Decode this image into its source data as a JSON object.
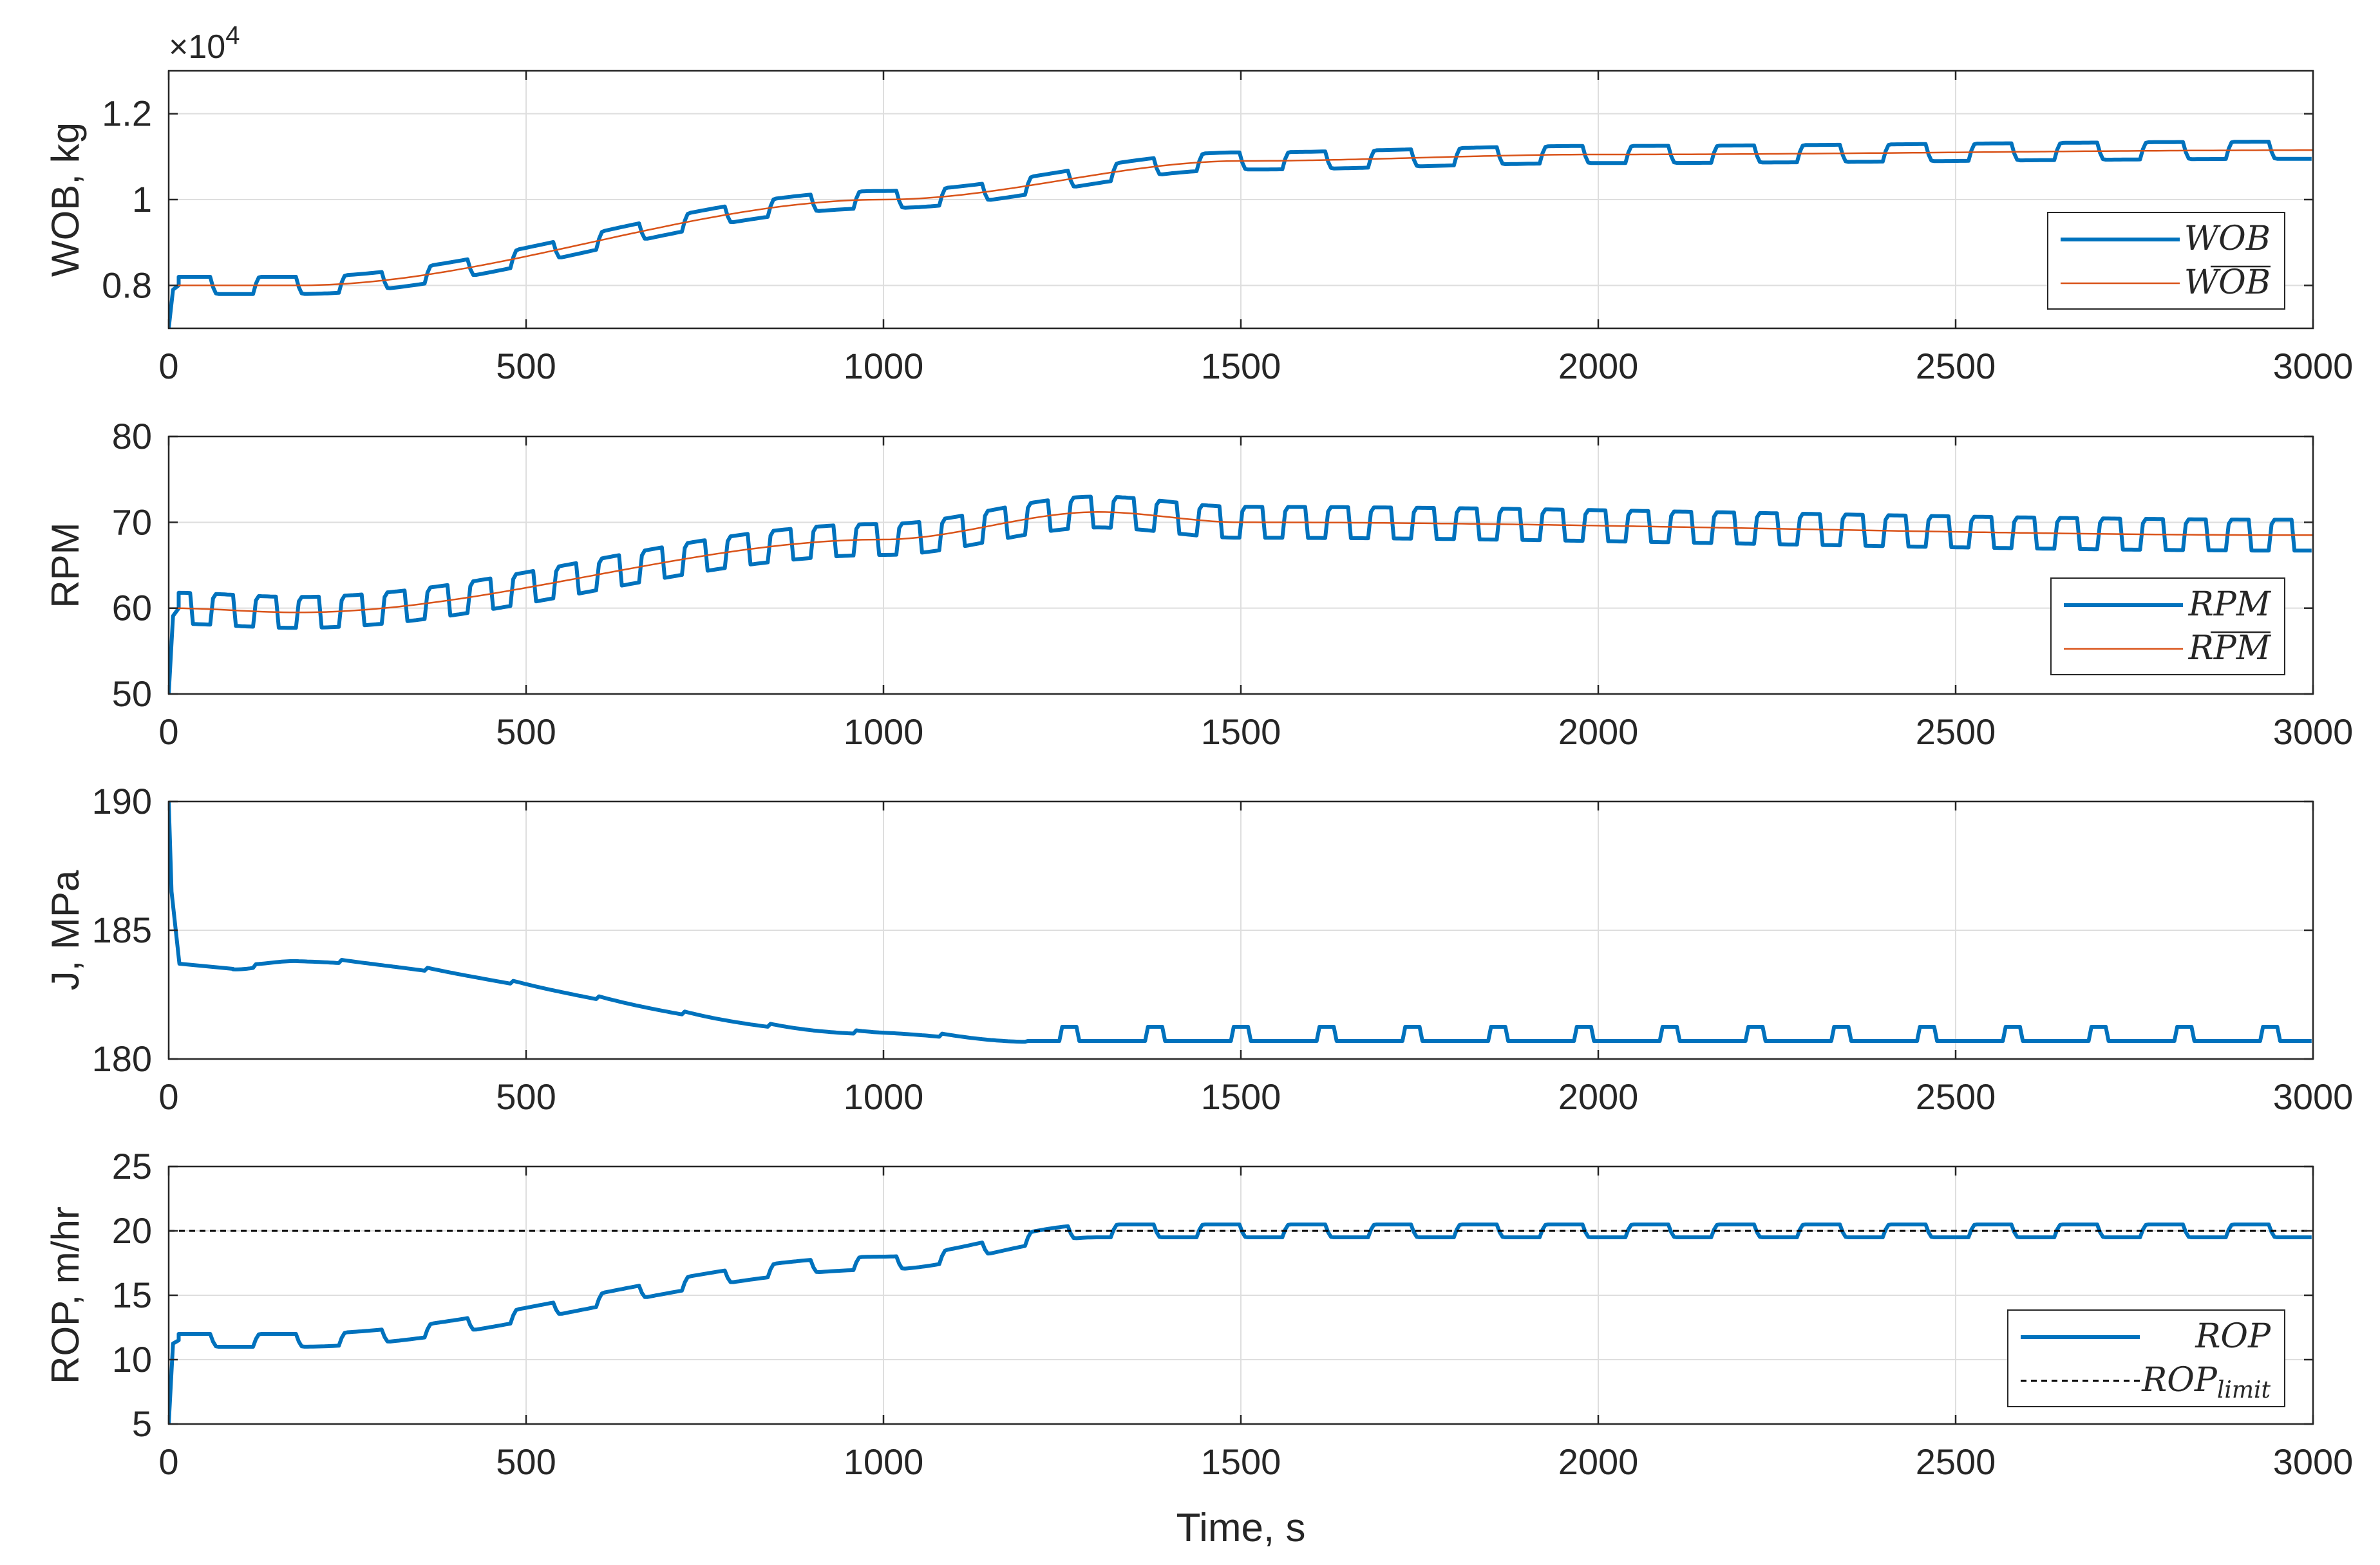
{
  "chart_data": [
    {
      "type": "line",
      "id": "wob",
      "ylabel": "WOB, kg",
      "exponent": "×10",
      "exponent_power": "4",
      "xlim": [
        0,
        3000
      ],
      "ylim": [
        0.7,
        1.3
      ],
      "yticks": [
        "0.8",
        "1",
        "1.2"
      ],
      "ytick_values": [
        0.8,
        1.0,
        1.2
      ],
      "xticks": [
        "0",
        "500",
        "1000",
        "1500",
        "2000",
        "2500",
        "3000"
      ],
      "series": [
        {
          "name": "WOB",
          "legend": "WOB",
          "color": "#0072BD",
          "style": "square-wave",
          "start": 0.7,
          "period": 120,
          "amplitude": 0.02,
          "trend_x": [
            0,
            180,
            1000,
            1500,
            2000,
            3000
          ],
          "trend_y": [
            0.8,
            0.8,
            1.0,
            1.09,
            1.105,
            1.115
          ]
        },
        {
          "name": "WOB mean",
          "legend": "WOB",
          "overline": true,
          "color": "#D95319",
          "style": "smooth",
          "x": [
            0,
            180,
            1000,
            1500,
            2000,
            3000
          ],
          "y": [
            0.8,
            0.8,
            1.0,
            1.09,
            1.105,
            1.115
          ]
        }
      ],
      "legend_position": "lower-right"
    },
    {
      "type": "line",
      "id": "rpm",
      "ylabel": "RPM",
      "xlim": [
        0,
        3000
      ],
      "ylim": [
        50,
        80
      ],
      "yticks": [
        "50",
        "60",
        "70",
        "80"
      ],
      "ytick_values": [
        50,
        60,
        70,
        80
      ],
      "xticks": [
        "0",
        "500",
        "1000",
        "1500",
        "2000",
        "2500",
        "3000"
      ],
      "series": [
        {
          "name": "RPM",
          "legend": "RPM",
          "color": "#0072BD",
          "style": "square-wave",
          "start": 50,
          "period": 60,
          "amplitude": 1.8,
          "trend_x": [
            0,
            180,
            1000,
            1300,
            1500,
            3000
          ],
          "trend_y": [
            60.0,
            59.5,
            68.0,
            71.2,
            70.0,
            68.5
          ]
        },
        {
          "name": "RPM mean",
          "legend": "RPM",
          "overline": true,
          "color": "#D95319",
          "style": "smooth",
          "x": [
            0,
            180,
            1000,
            1300,
            1500,
            3000
          ],
          "y": [
            60.0,
            59.5,
            68.0,
            71.2,
            70.0,
            68.5
          ]
        }
      ],
      "legend_position": "lower-right"
    },
    {
      "type": "line",
      "id": "j",
      "ylabel": "J, MPa",
      "xlim": [
        0,
        3000
      ],
      "ylim": [
        180,
        190
      ],
      "yticks": [
        "180",
        "185",
        "190"
      ],
      "ytick_values": [
        180,
        185,
        190
      ],
      "xticks": [
        "0",
        "500",
        "1000",
        "1500",
        "2000",
        "2500",
        "3000"
      ],
      "series": [
        {
          "name": "J",
          "color": "#0072BD",
          "style": "j-cost",
          "points": [
            [
              0,
              190
            ],
            [
              4,
              186.5
            ],
            [
              15,
              183.7
            ],
            [
              90,
              183.5
            ],
            [
              180,
              183.8
            ],
            [
              1000,
              181.0
            ],
            [
              1200,
              180.7
            ],
            [
              3000,
              180.7
            ]
          ]
        }
      ]
    },
    {
      "type": "line",
      "id": "rop",
      "ylabel": "ROP, m/hr",
      "xlabel": "Time, s",
      "xlim": [
        0,
        3000
      ],
      "ylim": [
        5,
        25
      ],
      "yticks": [
        "5",
        "10",
        "15",
        "20",
        "25"
      ],
      "ytick_values": [
        5,
        10,
        15,
        20,
        25
      ],
      "xticks": [
        "0",
        "500",
        "1000",
        "1500",
        "2000",
        "2500",
        "3000"
      ],
      "series": [
        {
          "name": "ROP",
          "legend": "ROP",
          "color": "#0072BD",
          "style": "square-wave",
          "start": 5,
          "period": 120,
          "amplitude": 0.5,
          "trend_x": [
            0,
            180,
            1000,
            1300,
            3000
          ],
          "trend_y": [
            11.5,
            11.5,
            17.5,
            20.0,
            20.0
          ]
        },
        {
          "name": "ROP limit",
          "legend": "ROP",
          "legend_sub": "limit",
          "color": "#000000",
          "style": "dashed",
          "y": 20
        }
      ],
      "legend_position": "lower-right"
    }
  ]
}
